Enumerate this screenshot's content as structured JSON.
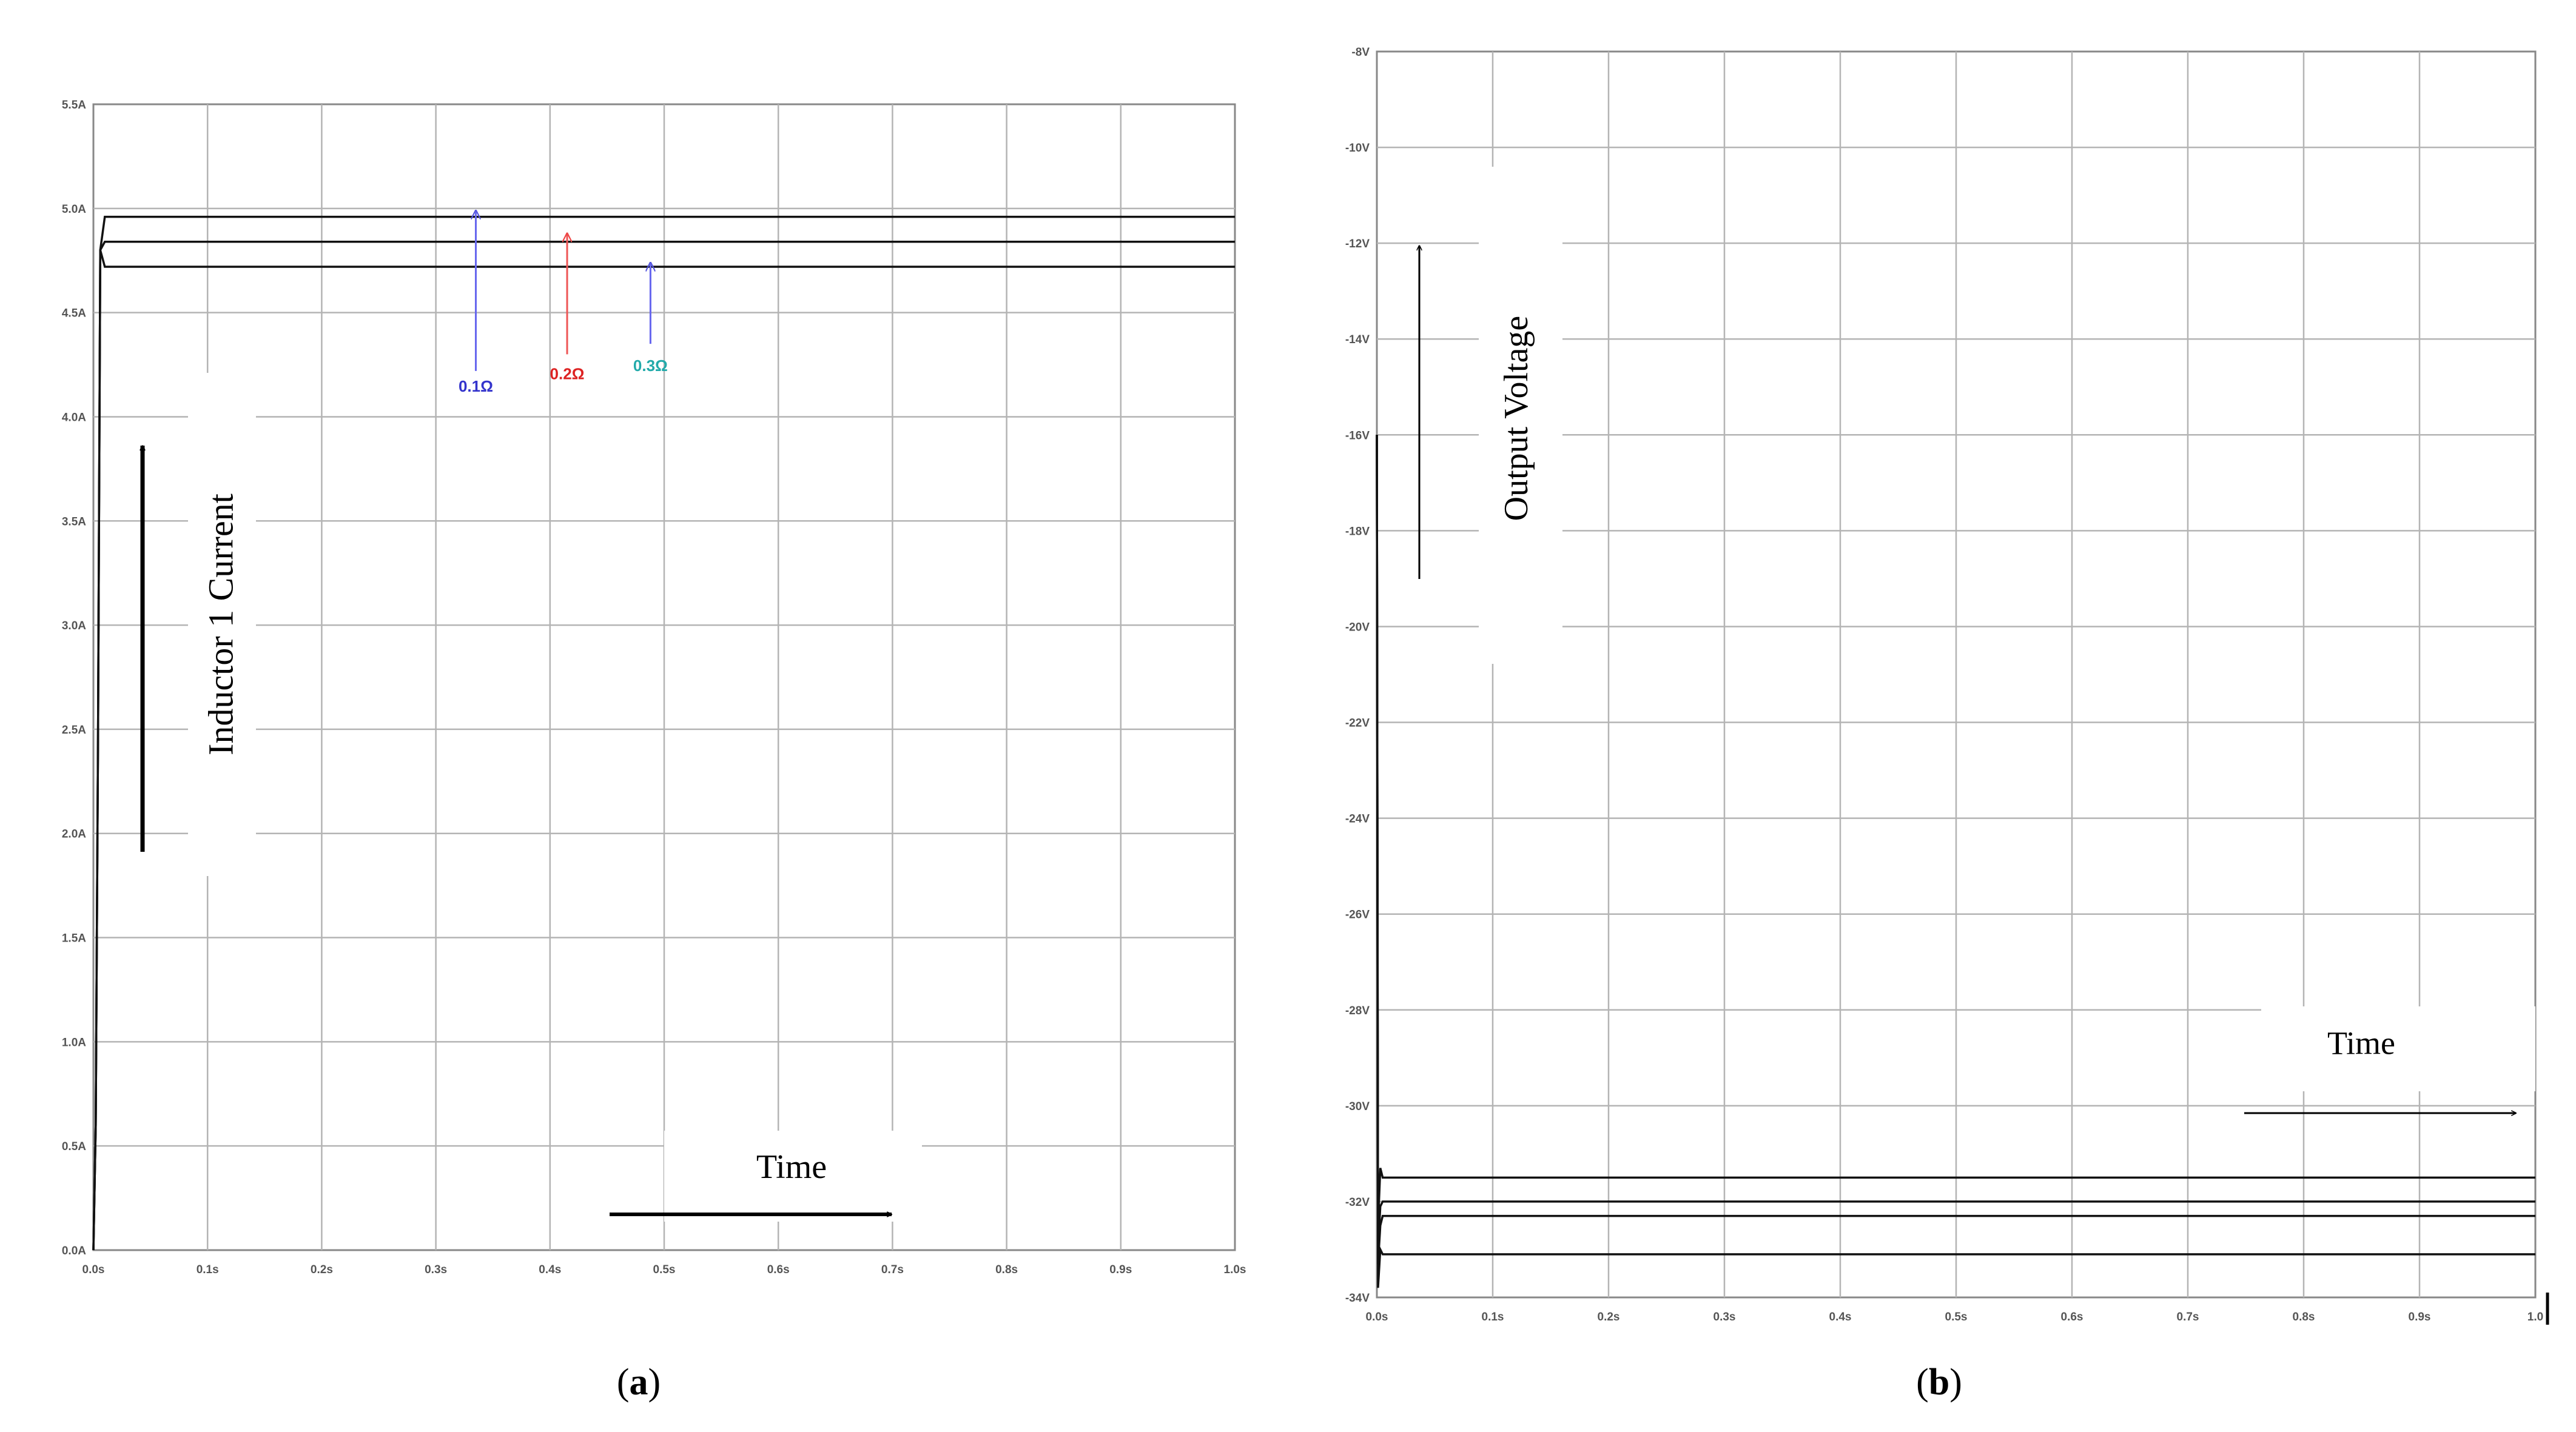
{
  "panels": {
    "a": {
      "caption_letter": "a"
    },
    "b": {
      "caption_letter": "b"
    }
  },
  "chart_data": [
    {
      "type": "line",
      "panel": "a",
      "ylabel": "Inductor 1 Current",
      "xlabel": "Time",
      "xlim": [
        0,
        1.0
      ],
      "ylim": [
        0,
        5.5
      ],
      "x_ticks": [
        "0.0s",
        "0.1s",
        "0.2s",
        "0.3s",
        "0.4s",
        "0.5s",
        "0.6s",
        "0.7s",
        "0.8s",
        "0.9s",
        "1.0s"
      ],
      "y_ticks": [
        "0.0A",
        "0.5A",
        "1.0A",
        "1.5A",
        "2.0A",
        "2.5A",
        "3.0A",
        "3.5A",
        "4.0A",
        "4.5A",
        "5.0A",
        "5.5A"
      ],
      "grid": true,
      "series": [
        {
          "x": [
            0,
            0.002,
            0.004,
            0.006,
            0.01,
            1.0
          ],
          "y": [
            0,
            0.6,
            2.4,
            4.8,
            4.96,
            4.96
          ]
        },
        {
          "x": [
            0,
            0.002,
            0.004,
            0.006,
            0.01,
            1.0
          ],
          "y": [
            0,
            0.6,
            2.4,
            4.8,
            4.84,
            4.84
          ]
        },
        {
          "x": [
            0,
            0.002,
            0.004,
            0.006,
            0.01,
            1.0
          ],
          "y": [
            0,
            0.6,
            2.4,
            4.8,
            4.72,
            4.72
          ]
        }
      ],
      "annotations": [
        {
          "text": "0.1Ω",
          "color": "#3333cc",
          "arrow_x": 0.335,
          "arrow_y": [
            4.22,
            4.99
          ],
          "label_y": 4.12
        },
        {
          "text": "0.2Ω",
          "color": "#dd2222",
          "arrow_x": 0.415,
          "arrow_y": [
            4.3,
            4.88
          ],
          "label_y": 4.18
        },
        {
          "text": "0.3Ω",
          "color": "#22aaaa",
          "arrow_x": 0.488,
          "arrow_y": [
            4.35,
            4.74
          ],
          "label_y": 4.22
        }
      ],
      "annotation_arrow_color": "#8888ee"
    },
    {
      "type": "line",
      "panel": "b",
      "ylabel": "Output Voltage",
      "xlabel": "Time",
      "xlim": [
        0,
        1.0
      ],
      "ylim": [
        -34,
        -8
      ],
      "x_ticks": [
        "0.0s",
        "0.1s",
        "0.2s",
        "0.3s",
        "0.4s",
        "0.5s",
        "0.6s",
        "0.7s",
        "0.8s",
        "0.9s",
        "1.0"
      ],
      "y_ticks": [
        "-34V",
        "-32V",
        "-30V",
        "-28V",
        "-26V",
        "-24V",
        "-22V",
        "-20V",
        "-18V",
        "-16V",
        "-14V",
        "-12V",
        "-10V",
        "-8V"
      ],
      "grid": true,
      "series": [
        {
          "x": [
            0,
            0.001,
            0.003,
            0.005,
            1.0
          ],
          "y": [
            -16,
            -32.5,
            -31.3,
            -31.5,
            -31.5
          ]
        },
        {
          "x": [
            0,
            0.001,
            0.003,
            0.005,
            1.0
          ],
          "y": [
            -16,
            -33.0,
            -32.1,
            -32.0,
            -32.0
          ]
        },
        {
          "x": [
            0,
            0.001,
            0.003,
            0.005,
            1.0
          ],
          "y": [
            -16,
            -33.3,
            -32.5,
            -32.3,
            -32.3
          ]
        },
        {
          "x": [
            0,
            0.001,
            0.003,
            0.005,
            1.0
          ],
          "y": [
            -16,
            -33.8,
            -33.0,
            -33.1,
            -33.1
          ]
        }
      ]
    }
  ]
}
